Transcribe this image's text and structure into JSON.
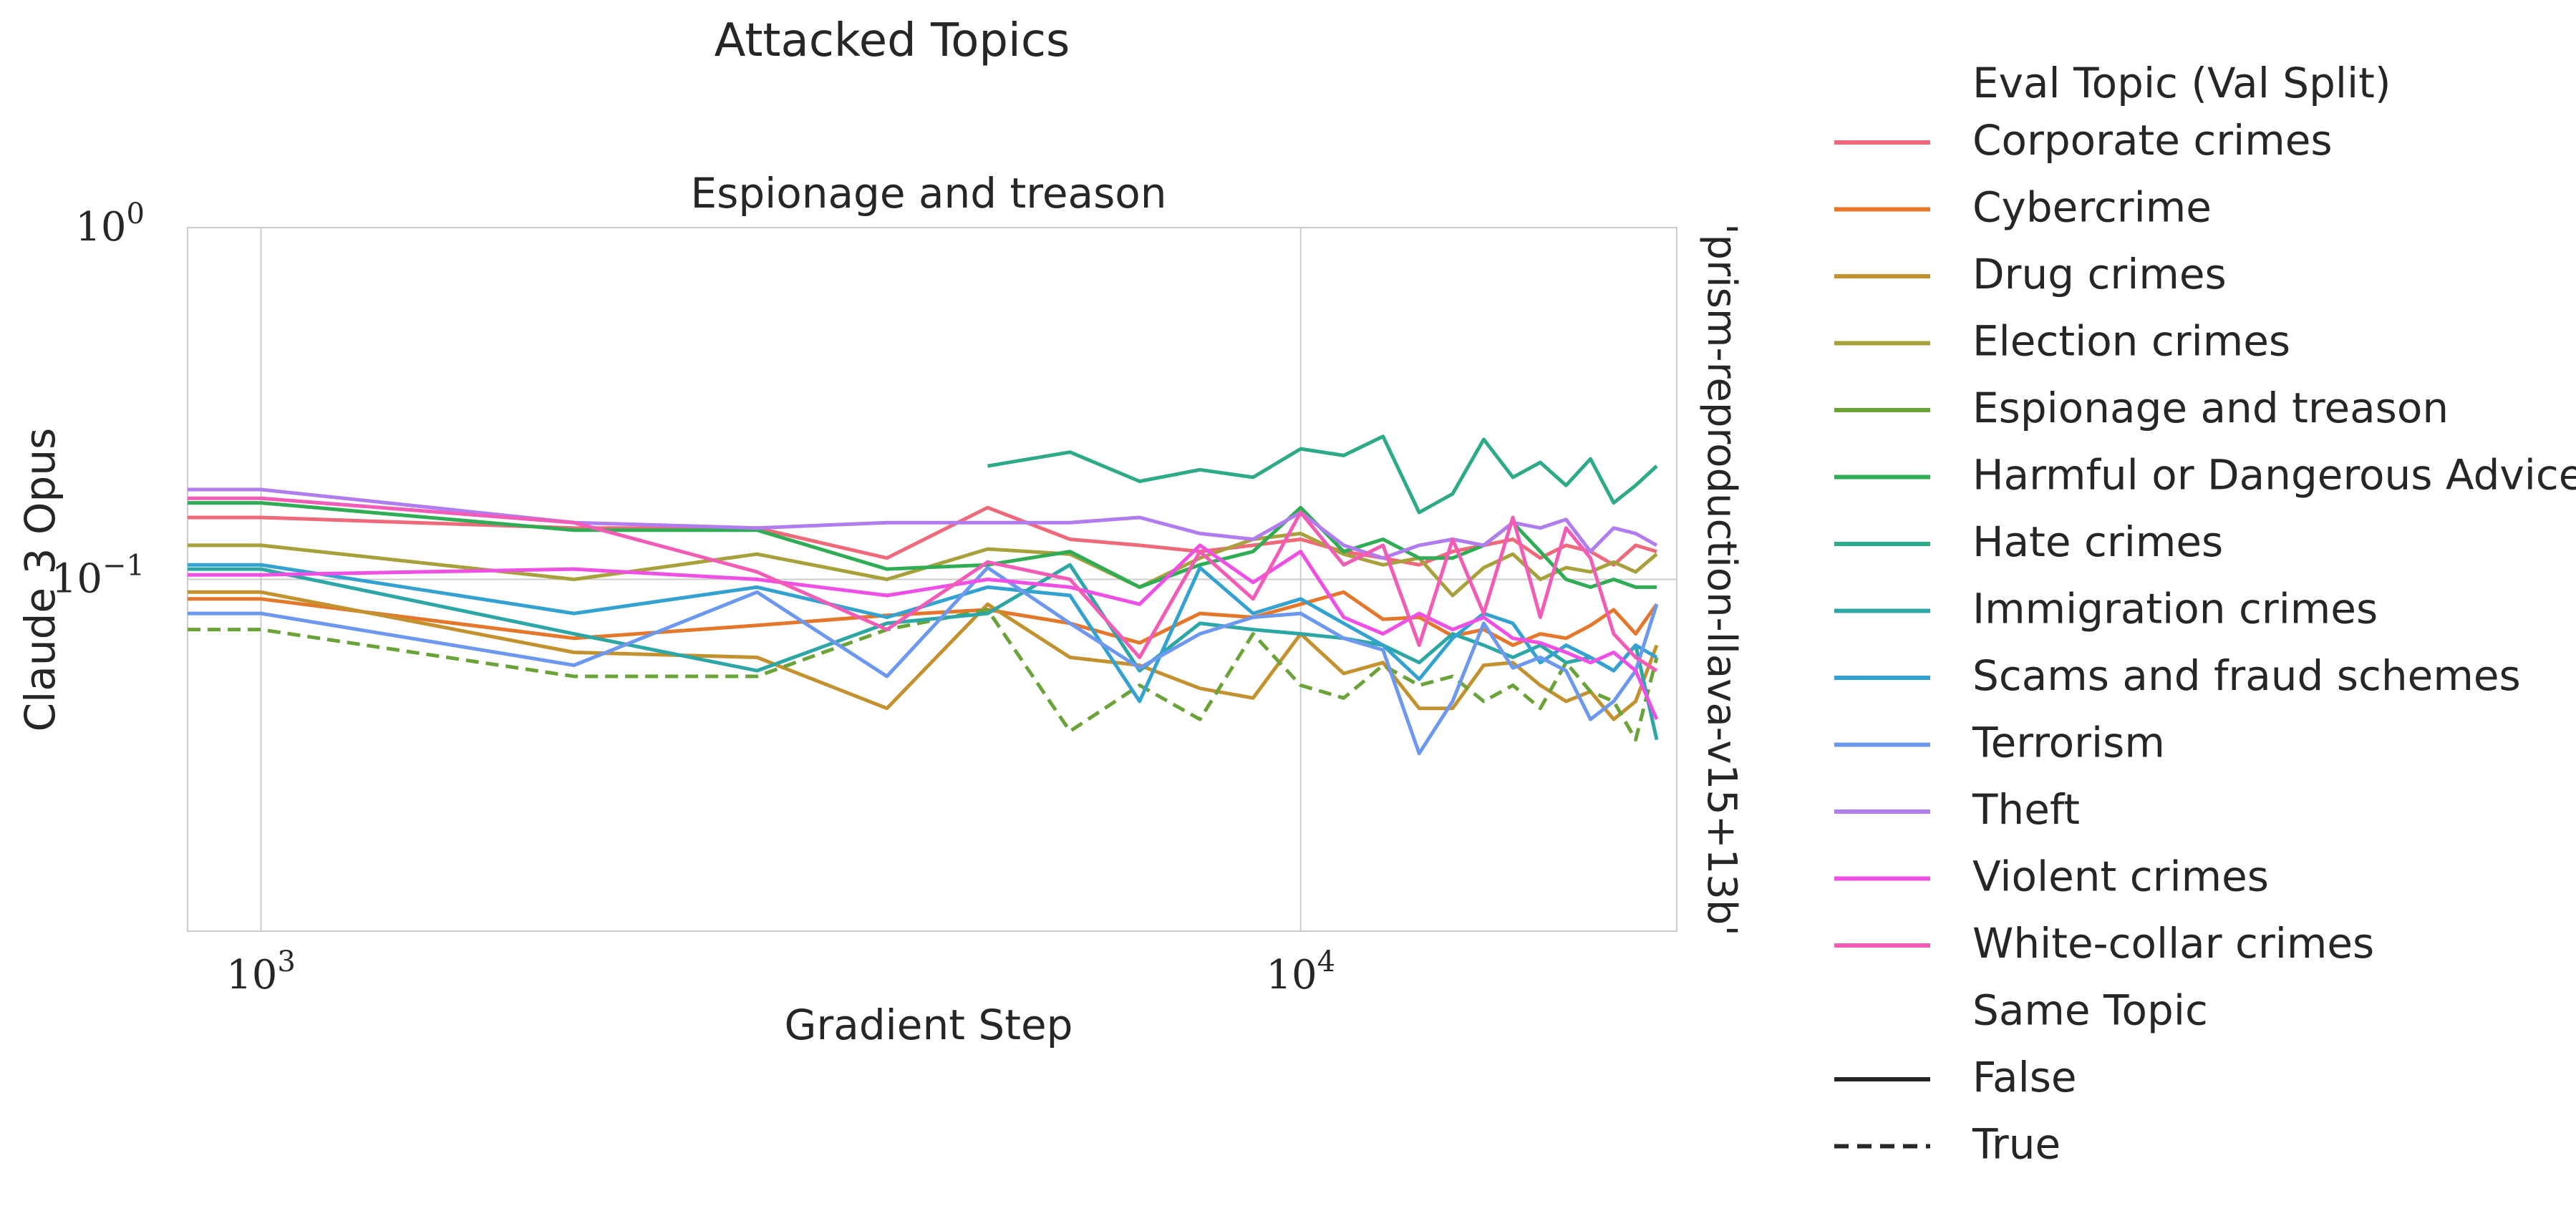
{
  "chart_data": {
    "type": "line",
    "suptitle": "Attacked Topics",
    "title": "Espionage and treason",
    "xlabel": "Gradient Step",
    "ylabel": "Claude 3 Opus",
    "right_label": "'prism-reproduction-llava-v15+13b'",
    "xscale": "log",
    "yscale": "log",
    "xlim": [
      850,
      23000
    ],
    "ylim": [
      0.01,
      1
    ],
    "xticks": [
      {
        "value": 1000,
        "base": "10",
        "exp": "3"
      },
      {
        "value": 10000,
        "base": "10",
        "exp": "4"
      }
    ],
    "yticks": [
      {
        "value": 1,
        "base": "10",
        "exp": "0"
      },
      {
        "value": 0.1,
        "base": "10",
        "exp": "−1"
      }
    ],
    "grid": true,
    "legend": {
      "placement": "right-outside",
      "title": "Eval Topic (Val Split)",
      "style_title": "Same Topic",
      "style_entries": [
        {
          "label": "False",
          "dash": "solid"
        },
        {
          "label": "True",
          "dash": "dashed"
        }
      ]
    },
    "series": [
      {
        "name": "Corporate crimes",
        "color": "#f0697a",
        "dash": "solid",
        "x": [
          850,
          1000,
          2000,
          3000,
          4000,
          5000,
          6000,
          7000,
          8000,
          9000,
          10000,
          11000,
          12000,
          13000,
          14000,
          15000,
          16000,
          17000,
          18000,
          19000,
          20000,
          21000,
          22000
        ],
        "y": [
          0.15,
          0.15,
          0.14,
          0.14,
          0.115,
          0.16,
          0.13,
          0.125,
          0.12,
          0.125,
          0.13,
          0.12,
          0.115,
          0.11,
          0.12,
          0.125,
          0.13,
          0.115,
          0.125,
          0.12,
          0.11,
          0.125,
          0.12
        ]
      },
      {
        "name": "Cybercrime",
        "color": "#e5772b",
        "dash": "solid",
        "x": [
          850,
          1000,
          2000,
          3000,
          4000,
          5000,
          6000,
          7000,
          8000,
          9000,
          10000,
          11000,
          12000,
          13000,
          14000,
          15000,
          16000,
          17000,
          18000,
          19000,
          20000,
          21000,
          22000
        ],
        "y": [
          0.088,
          0.088,
          0.068,
          0.074,
          0.079,
          0.082,
          0.075,
          0.066,
          0.08,
          0.078,
          0.085,
          0.092,
          0.077,
          0.078,
          0.069,
          0.072,
          0.065,
          0.07,
          0.068,
          0.074,
          0.082,
          0.07,
          0.085
        ]
      },
      {
        "name": "Drug crimes",
        "color": "#c3922f",
        "dash": "solid",
        "x": [
          850,
          1000,
          2000,
          3000,
          4000,
          5000,
          6000,
          7000,
          8000,
          9000,
          10000,
          11000,
          12000,
          13000,
          14000,
          15000,
          16000,
          17000,
          18000,
          19000,
          20000,
          21000,
          22000
        ],
        "y": [
          0.092,
          0.092,
          0.062,
          0.06,
          0.043,
          0.085,
          0.06,
          0.057,
          0.049,
          0.046,
          0.07,
          0.054,
          0.058,
          0.043,
          0.043,
          0.057,
          0.058,
          0.05,
          0.045,
          0.048,
          0.04,
          0.045,
          0.065
        ]
      },
      {
        "name": "Election crimes",
        "color": "#a8a03a",
        "dash": "solid",
        "x": [
          850,
          1000,
          2000,
          3000,
          4000,
          5000,
          6000,
          7000,
          8000,
          9000,
          10000,
          11000,
          12000,
          13000,
          14000,
          15000,
          16000,
          17000,
          18000,
          19000,
          20000,
          21000,
          22000
        ],
        "y": [
          0.125,
          0.125,
          0.1,
          0.118,
          0.1,
          0.122,
          0.118,
          0.095,
          0.115,
          0.13,
          0.135,
          0.118,
          0.11,
          0.115,
          0.09,
          0.108,
          0.118,
          0.1,
          0.108,
          0.105,
          0.112,
          0.105,
          0.118
        ]
      },
      {
        "name": "Espionage and treason",
        "color": "#6aa337",
        "dash": "dashed",
        "x": [
          850,
          1000,
          2000,
          3000,
          4000,
          5000,
          6000,
          7000,
          8000,
          9000,
          10000,
          11000,
          12000,
          13000,
          14000,
          15000,
          16000,
          17000,
          18000,
          19000,
          20000,
          21000,
          22000
        ],
        "y": [
          0.072,
          0.072,
          0.053,
          0.053,
          0.072,
          0.082,
          0.037,
          0.05,
          0.04,
          0.07,
          0.05,
          0.046,
          0.057,
          0.05,
          0.053,
          0.045,
          0.05,
          0.043,
          0.058,
          0.048,
          0.045,
          0.035,
          0.06
        ]
      },
      {
        "name": "Harmful or Dangerous Advice",
        "color": "#2ead55",
        "dash": "solid",
        "x": [
          850,
          1000,
          2000,
          3000,
          4000,
          5000,
          6000,
          7000,
          8000,
          9000,
          10000,
          11000,
          12000,
          13000,
          14000,
          15000,
          16000,
          17000,
          18000,
          19000,
          20000,
          21000,
          22000
        ],
        "y": [
          0.165,
          0.165,
          0.138,
          0.138,
          0.107,
          0.11,
          0.12,
          0.095,
          0.11,
          0.12,
          0.16,
          0.12,
          0.13,
          0.115,
          0.115,
          0.125,
          0.145,
          0.12,
          0.1,
          0.095,
          0.1,
          0.095,
          0.095
        ]
      },
      {
        "name": "Hate crimes",
        "color": "#2daa87",
        "dash": "solid",
        "x": [
          5000,
          6000,
          7000,
          8000,
          9000,
          10000,
          11000,
          12000,
          13000,
          14000,
          15000,
          16000,
          17000,
          18000,
          19000,
          20000,
          21000,
          22000
        ],
        "y": [
          0.21,
          0.23,
          0.19,
          0.205,
          0.195,
          0.235,
          0.225,
          0.255,
          0.155,
          0.175,
          0.25,
          0.195,
          0.215,
          0.185,
          0.22,
          0.165,
          0.185,
          0.21
        ]
      },
      {
        "name": "Immigration crimes",
        "color": "#2ca7a6",
        "dash": "solid",
        "x": [
          850,
          1000,
          2000,
          3000,
          4000,
          5000,
          6000,
          7000,
          8000,
          9000,
          10000,
          11000,
          12000,
          13000,
          14000,
          15000,
          16000,
          17000,
          18000,
          19000,
          20000,
          21000,
          22000
        ],
        "y": [
          0.107,
          0.107,
          0.07,
          0.055,
          0.075,
          0.08,
          0.11,
          0.055,
          0.075,
          0.072,
          0.07,
          0.068,
          0.065,
          0.058,
          0.07,
          0.065,
          0.06,
          0.065,
          0.058,
          0.06,
          0.055,
          0.065,
          0.035
        ]
      },
      {
        "name": "Scams and fraud schemes",
        "color": "#33a2d0",
        "dash": "solid",
        "x": [
          850,
          1000,
          2000,
          3000,
          4000,
          5000,
          6000,
          7000,
          8000,
          9000,
          10000,
          11000,
          12000,
          13000,
          14000,
          15000,
          16000,
          17000,
          18000,
          19000,
          20000,
          21000,
          22000
        ],
        "y": [
          0.11,
          0.11,
          0.08,
          0.095,
          0.078,
          0.095,
          0.09,
          0.045,
          0.108,
          0.08,
          0.088,
          0.075,
          0.065,
          0.052,
          0.068,
          0.08,
          0.075,
          0.058,
          0.065,
          0.06,
          0.055,
          0.065,
          0.06
        ]
      },
      {
        "name": "Terrorism",
        "color": "#6c98ef",
        "dash": "solid",
        "x": [
          850,
          1000,
          2000,
          3000,
          4000,
          5000,
          6000,
          7000,
          8000,
          9000,
          10000,
          11000,
          12000,
          13000,
          14000,
          15000,
          16000,
          17000,
          18000,
          19000,
          20000,
          21000,
          22000
        ],
        "y": [
          0.08,
          0.08,
          0.057,
          0.092,
          0.053,
          0.108,
          0.075,
          0.056,
          0.07,
          0.078,
          0.08,
          0.068,
          0.063,
          0.032,
          0.045,
          0.075,
          0.056,
          0.06,
          0.055,
          0.04,
          0.045,
          0.055,
          0.085
        ]
      },
      {
        "name": "Theft",
        "color": "#b17cef",
        "dash": "solid",
        "x": [
          850,
          1000,
          2000,
          3000,
          4000,
          5000,
          6000,
          7000,
          8000,
          9000,
          10000,
          11000,
          12000,
          13000,
          14000,
          15000,
          16000,
          17000,
          18000,
          19000,
          20000,
          21000,
          22000
        ],
        "y": [
          0.18,
          0.18,
          0.145,
          0.14,
          0.145,
          0.145,
          0.145,
          0.15,
          0.135,
          0.13,
          0.155,
          0.125,
          0.115,
          0.125,
          0.13,
          0.125,
          0.145,
          0.14,
          0.148,
          0.12,
          0.14,
          0.135,
          0.125
        ]
      },
      {
        "name": "Violent crimes",
        "color": "#ef4fe4",
        "dash": "solid",
        "x": [
          850,
          1000,
          2000,
          3000,
          4000,
          5000,
          6000,
          7000,
          8000,
          9000,
          10000,
          11000,
          12000,
          13000,
          14000,
          15000,
          16000,
          17000,
          18000,
          19000,
          20000,
          21000,
          22000
        ],
        "y": [
          0.103,
          0.103,
          0.107,
          0.1,
          0.09,
          0.1,
          0.095,
          0.085,
          0.125,
          0.098,
          0.12,
          0.078,
          0.07,
          0.08,
          0.072,
          0.078,
          0.068,
          0.066,
          0.062,
          0.058,
          0.062,
          0.055,
          0.04
        ]
      },
      {
        "name": "White-collar crimes",
        "color": "#f35cb6",
        "dash": "solid",
        "x": [
          850,
          1000,
          2000,
          3000,
          4000,
          5000,
          6000,
          7000,
          8000,
          9000,
          10000,
          11000,
          12000,
          13000,
          14000,
          15000,
          16000,
          17000,
          18000,
          19000,
          20000,
          21000,
          22000
        ],
        "y": [
          0.17,
          0.17,
          0.145,
          0.105,
          0.072,
          0.112,
          0.1,
          0.06,
          0.12,
          0.088,
          0.155,
          0.11,
          0.125,
          0.065,
          0.13,
          0.08,
          0.15,
          0.078,
          0.14,
          0.115,
          0.07,
          0.06,
          0.055
        ]
      }
    ]
  }
}
